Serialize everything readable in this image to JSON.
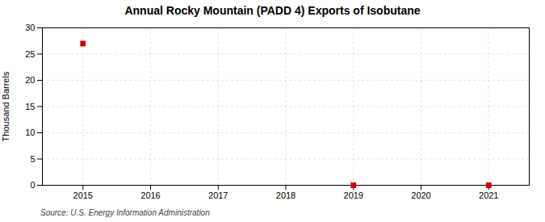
{
  "chart_data": {
    "type": "scatter",
    "title": "Annual Rocky Mountain (PADD 4) Exports of Isobutane",
    "ylabel": "Thousand Barrels",
    "caption": "Source: U.S. Energy Information Administration",
    "x": [
      2015,
      2016,
      2017,
      2018,
      2019,
      2020,
      2021
    ],
    "values": [
      27,
      null,
      null,
      null,
      0,
      null,
      0
    ],
    "color": "#cc0000",
    "marker": "square",
    "xlim": [
      2014.4,
      2021.6
    ],
    "xticks": [
      2015,
      2016,
      2017,
      2018,
      2019,
      2020,
      2021
    ],
    "ylim": [
      0,
      30
    ],
    "yticks": [
      0,
      5,
      10,
      15,
      20,
      25,
      30
    ],
    "grid": true
  }
}
